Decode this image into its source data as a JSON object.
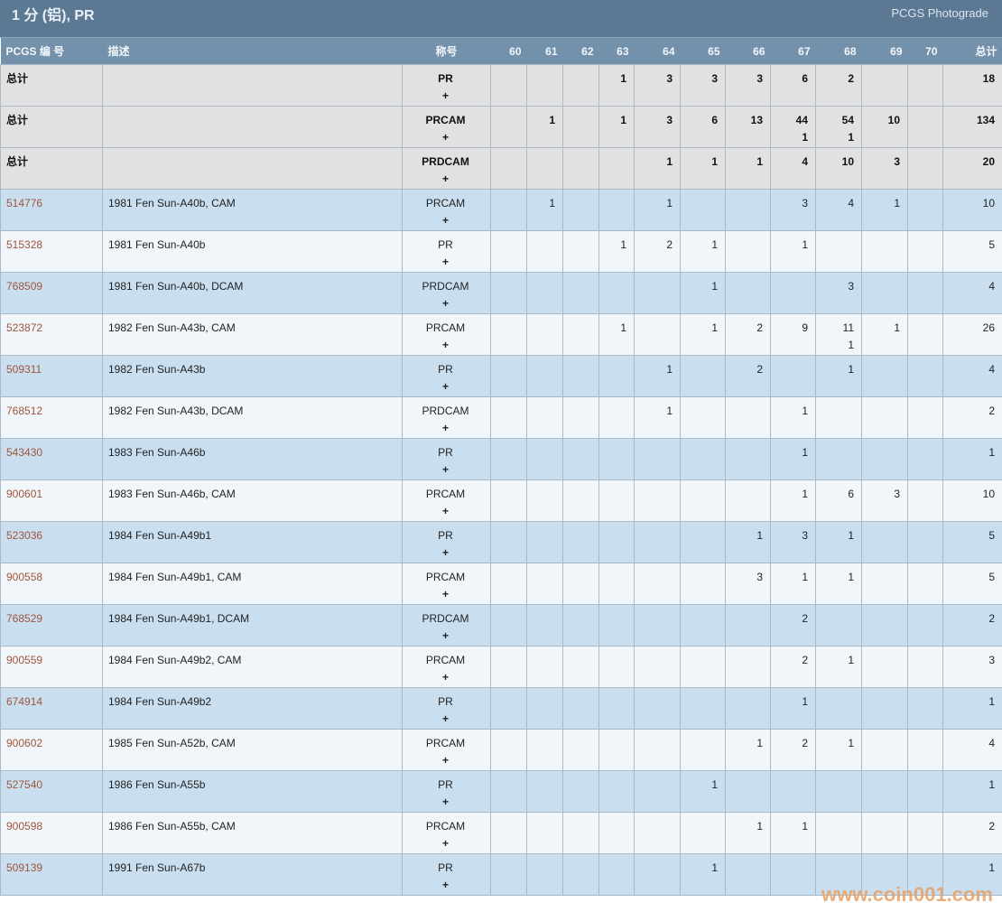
{
  "header": {
    "title": "1 分 (铝), PR",
    "subtitle": "PCGS Photograde"
  },
  "columns": {
    "pcgs": "PCGS 编 号",
    "desc": "描述",
    "designation": "称号",
    "grades": [
      "60",
      "61",
      "62",
      "63",
      "64",
      "65",
      "66",
      "67",
      "68",
      "69",
      "70"
    ],
    "total": "总计"
  },
  "totals": [
    {
      "label": "总计",
      "designation": "PR",
      "plus_symbol": "+",
      "grades": [
        "",
        "",
        "",
        "1",
        "3",
        "3",
        "3",
        "6",
        "2",
        "",
        ""
      ],
      "plus_grades": [
        "",
        "",
        "",
        "",
        "",
        "",
        "",
        "",
        "",
        "",
        ""
      ],
      "total": "18"
    },
    {
      "label": "总计",
      "designation": "PRCAM",
      "plus_symbol": "+",
      "grades": [
        "",
        "1",
        "",
        "1",
        "3",
        "6",
        "13",
        "44",
        "54",
        "10",
        ""
      ],
      "plus_grades": [
        "",
        "",
        "",
        "",
        "",
        "",
        "",
        "1",
        "1",
        "",
        ""
      ],
      "total": "134"
    },
    {
      "label": "总计",
      "designation": "PRDCAM",
      "plus_symbol": "+",
      "grades": [
        "",
        "",
        "",
        "",
        "1",
        "1",
        "1",
        "4",
        "10",
        "3",
        ""
      ],
      "plus_grades": [
        "",
        "",
        "",
        "",
        "",
        "",
        "",
        "",
        "",
        "",
        ""
      ],
      "total": "20"
    }
  ],
  "rows": [
    {
      "pcgs": "514776",
      "desc": "1981 Fen Sun-A40b, CAM",
      "designation": "PRCAM",
      "plus_symbol": "+",
      "grades": [
        "",
        "1",
        "",
        "",
        "1",
        "",
        "",
        "3",
        "4",
        "1",
        ""
      ],
      "plus_grades": [
        "",
        "",
        "",
        "",
        "",
        "",
        "",
        "",
        "",
        "",
        ""
      ],
      "total": "10"
    },
    {
      "pcgs": "515328",
      "desc": "1981 Fen Sun-A40b",
      "designation": "PR",
      "plus_symbol": "+",
      "grades": [
        "",
        "",
        "",
        "1",
        "2",
        "1",
        "",
        "1",
        "",
        "",
        ""
      ],
      "plus_grades": [
        "",
        "",
        "",
        "",
        "",
        "",
        "",
        "",
        "",
        "",
        ""
      ],
      "total": "5"
    },
    {
      "pcgs": "768509",
      "desc": "1981 Fen Sun-A40b, DCAM",
      "designation": "PRDCAM",
      "plus_symbol": "+",
      "grades": [
        "",
        "",
        "",
        "",
        "",
        "1",
        "",
        "",
        "3",
        "",
        ""
      ],
      "plus_grades": [
        "",
        "",
        "",
        "",
        "",
        "",
        "",
        "",
        "",
        "",
        ""
      ],
      "total": "4"
    },
    {
      "pcgs": "523872",
      "desc": "1982 Fen Sun-A43b, CAM",
      "designation": "PRCAM",
      "plus_symbol": "+",
      "grades": [
        "",
        "",
        "",
        "1",
        "",
        "1",
        "2",
        "9",
        "11",
        "1",
        ""
      ],
      "plus_grades": [
        "",
        "",
        "",
        "",
        "",
        "",
        "",
        "",
        "1",
        "",
        ""
      ],
      "total": "26"
    },
    {
      "pcgs": "509311",
      "desc": "1982 Fen Sun-A43b",
      "designation": "PR",
      "plus_symbol": "+",
      "grades": [
        "",
        "",
        "",
        "",
        "1",
        "",
        "2",
        "",
        "1",
        "",
        ""
      ],
      "plus_grades": [
        "",
        "",
        "",
        "",
        "",
        "",
        "",
        "",
        "",
        "",
        ""
      ],
      "total": "4"
    },
    {
      "pcgs": "768512",
      "desc": "1982 Fen Sun-A43b, DCAM",
      "designation": "PRDCAM",
      "plus_symbol": "+",
      "grades": [
        "",
        "",
        "",
        "",
        "1",
        "",
        "",
        "1",
        "",
        "",
        ""
      ],
      "plus_grades": [
        "",
        "",
        "",
        "",
        "",
        "",
        "",
        "",
        "",
        "",
        ""
      ],
      "total": "2"
    },
    {
      "pcgs": "543430",
      "desc": "1983 Fen Sun-A46b",
      "designation": "PR",
      "plus_symbol": "+",
      "grades": [
        "",
        "",
        "",
        "",
        "",
        "",
        "",
        "1",
        "",
        "",
        ""
      ],
      "plus_grades": [
        "",
        "",
        "",
        "",
        "",
        "",
        "",
        "",
        "",
        "",
        ""
      ],
      "total": "1"
    },
    {
      "pcgs": "900601",
      "desc": "1983 Fen Sun-A46b, CAM",
      "designation": "PRCAM",
      "plus_symbol": "+",
      "grades": [
        "",
        "",
        "",
        "",
        "",
        "",
        "",
        "1",
        "6",
        "3",
        ""
      ],
      "plus_grades": [
        "",
        "",
        "",
        "",
        "",
        "",
        "",
        "",
        "",
        "",
        ""
      ],
      "total": "10"
    },
    {
      "pcgs": "523036",
      "desc": "1984 Fen Sun-A49b1",
      "designation": "PR",
      "plus_symbol": "+",
      "grades": [
        "",
        "",
        "",
        "",
        "",
        "",
        "1",
        "3",
        "1",
        "",
        ""
      ],
      "plus_grades": [
        "",
        "",
        "",
        "",
        "",
        "",
        "",
        "",
        "",
        "",
        ""
      ],
      "total": "5"
    },
    {
      "pcgs": "900558",
      "desc": "1984 Fen Sun-A49b1, CAM",
      "designation": "PRCAM",
      "plus_symbol": "+",
      "grades": [
        "",
        "",
        "",
        "",
        "",
        "",
        "3",
        "1",
        "1",
        "",
        ""
      ],
      "plus_grades": [
        "",
        "",
        "",
        "",
        "",
        "",
        "",
        "",
        "",
        "",
        ""
      ],
      "total": "5"
    },
    {
      "pcgs": "768529",
      "desc": "1984 Fen Sun-A49b1, DCAM",
      "designation": "PRDCAM",
      "plus_symbol": "+",
      "grades": [
        "",
        "",
        "",
        "",
        "",
        "",
        "",
        "2",
        "",
        "",
        ""
      ],
      "plus_grades": [
        "",
        "",
        "",
        "",
        "",
        "",
        "",
        "",
        "",
        "",
        ""
      ],
      "total": "2"
    },
    {
      "pcgs": "900559",
      "desc": "1984 Fen Sun-A49b2, CAM",
      "designation": "PRCAM",
      "plus_symbol": "+",
      "grades": [
        "",
        "",
        "",
        "",
        "",
        "",
        "",
        "2",
        "1",
        "",
        ""
      ],
      "plus_grades": [
        "",
        "",
        "",
        "",
        "",
        "",
        "",
        "",
        "",
        "",
        ""
      ],
      "total": "3"
    },
    {
      "pcgs": "674914",
      "desc": "1984 Fen Sun-A49b2",
      "designation": "PR",
      "plus_symbol": "+",
      "grades": [
        "",
        "",
        "",
        "",
        "",
        "",
        "",
        "1",
        "",
        "",
        ""
      ],
      "plus_grades": [
        "",
        "",
        "",
        "",
        "",
        "",
        "",
        "",
        "",
        "",
        ""
      ],
      "total": "1"
    },
    {
      "pcgs": "900602",
      "desc": "1985 Fen Sun-A52b, CAM",
      "designation": "PRCAM",
      "plus_symbol": "+",
      "grades": [
        "",
        "",
        "",
        "",
        "",
        "",
        "1",
        "2",
        "1",
        "",
        ""
      ],
      "plus_grades": [
        "",
        "",
        "",
        "",
        "",
        "",
        "",
        "",
        "",
        "",
        ""
      ],
      "total": "4"
    },
    {
      "pcgs": "527540",
      "desc": "1986 Fen Sun-A55b",
      "designation": "PR",
      "plus_symbol": "+",
      "grades": [
        "",
        "",
        "",
        "",
        "",
        "1",
        "",
        "",
        "",
        "",
        ""
      ],
      "plus_grades": [
        "",
        "",
        "",
        "",
        "",
        "",
        "",
        "",
        "",
        "",
        ""
      ],
      "total": "1"
    },
    {
      "pcgs": "900598",
      "desc": "1986 Fen Sun-A55b, CAM",
      "designation": "PRCAM",
      "plus_symbol": "+",
      "grades": [
        "",
        "",
        "",
        "",
        "",
        "",
        "1",
        "1",
        "",
        "",
        ""
      ],
      "plus_grades": [
        "",
        "",
        "",
        "",
        "",
        "",
        "",
        "",
        "",
        "",
        ""
      ],
      "total": "2"
    },
    {
      "pcgs": "509139",
      "desc": "1991 Fen Sun-A67b",
      "designation": "PR",
      "plus_symbol": "+",
      "grades": [
        "",
        "",
        "",
        "",
        "",
        "1",
        "",
        "",
        "",
        "",
        ""
      ],
      "plus_grades": [
        "",
        "",
        "",
        "",
        "",
        "",
        "",
        "",
        "",
        "",
        ""
      ],
      "total": "1"
    }
  ],
  "watermark": "www.coin001.com",
  "colors": {
    "title_bar": "#5d7892",
    "column_header": "#7391ab",
    "link": "#a0553a",
    "row_odd": "#c9dff0",
    "row_even": "#f1f6fa",
    "total_row": "#e1e1e1"
  }
}
